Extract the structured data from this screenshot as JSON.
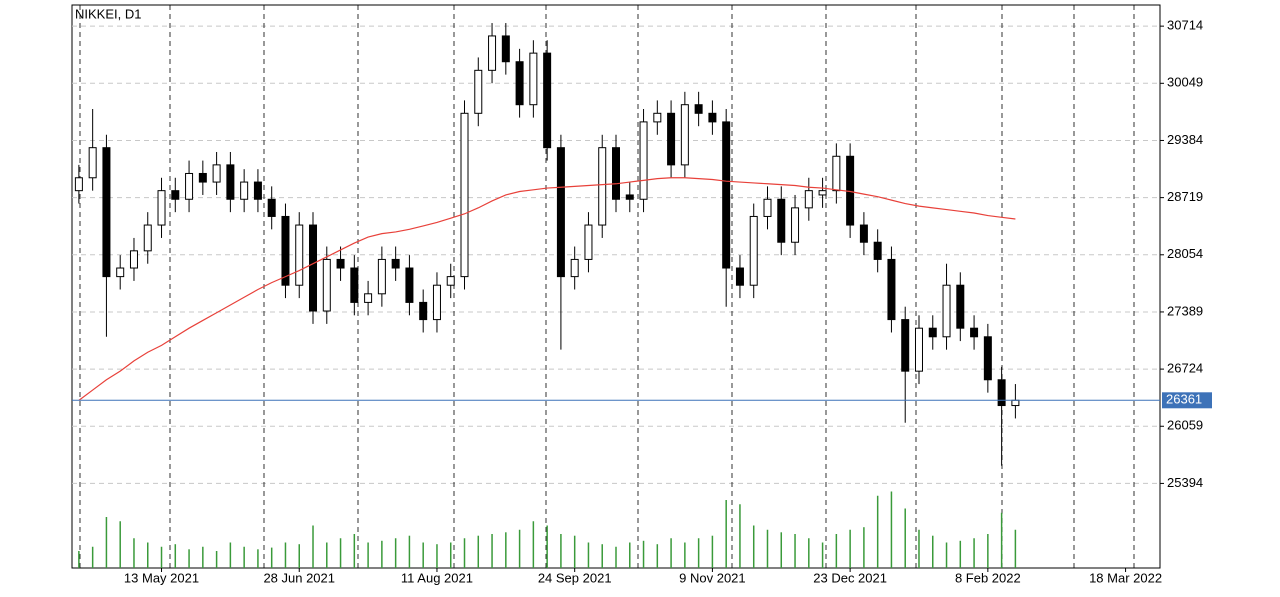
{
  "chart_data": {
    "type": "candlestick",
    "title": "NIKKEI, D1",
    "categories": [
      null,
      null,
      null,
      null,
      null,
      null,
      "13 May 2021",
      null,
      null,
      null,
      null,
      null,
      null,
      null,
      null,
      null,
      "28 Jun 2021",
      null,
      null,
      null,
      null,
      null,
      null,
      null,
      null,
      null,
      "11 Aug 2021",
      null,
      null,
      null,
      null,
      null,
      null,
      null,
      null,
      null,
      "24 Sep 2021",
      null,
      null,
      null,
      null,
      null,
      null,
      null,
      null,
      null,
      "9 Nov 2021",
      null,
      null,
      null,
      null,
      null,
      null,
      null,
      null,
      null,
      "23 Dec 2021",
      null,
      null,
      null,
      null,
      null,
      null,
      null,
      null,
      null,
      "8 Feb 2022",
      null,
      null,
      null,
      null,
      null,
      null,
      null,
      null,
      null,
      "18 Mar 2022",
      null,
      null
    ],
    "open": [
      28800,
      28950,
      29300,
      27800,
      27900,
      28100,
      28400,
      28800,
      28700,
      29000,
      28900,
      29100,
      28700,
      28900,
      28700,
      28500,
      27700,
      28400,
      27400,
      28000,
      27900,
      27500,
      27600,
      28000,
      27900,
      27500,
      27300,
      27700,
      27800,
      29700,
      30200,
      30600,
      30300,
      29800,
      30400,
      29300,
      27800,
      28000,
      28400,
      29300,
      28750,
      28700,
      29600,
      29700,
      29100,
      29800,
      29700,
      29600,
      27900,
      27700,
      28500,
      28700,
      28200,
      28600,
      28750,
      28800,
      29200,
      28400,
      28200,
      28000,
      27300,
      26700,
      27200,
      27100,
      27700,
      27200,
      27100,
      26600,
      26300,
      null,
      null,
      null,
      null,
      null,
      null,
      null,
      null,
      null,
      null
    ],
    "high": [
      29100,
      29750,
      29450,
      28050,
      28250,
      28550,
      28950,
      28950,
      29150,
      29150,
      29250,
      29250,
      29050,
      29050,
      28850,
      28650,
      28550,
      28550,
      28150,
      28150,
      28050,
      27750,
      28150,
      28150,
      28050,
      27650,
      27850,
      27950,
      29850,
      30350,
      30750,
      30750,
      30450,
      30550,
      30550,
      29450,
      28150,
      28550,
      29450,
      29450,
      28900,
      29750,
      29850,
      29850,
      29950,
      29950,
      29850,
      29750,
      28050,
      28650,
      28850,
      28850,
      28750,
      28950,
      28950,
      29350,
      29350,
      28550,
      28350,
      28150,
      27450,
      27350,
      27350,
      27950,
      27850,
      27350,
      27250,
      26750,
      26550,
      null,
      null,
      null,
      null,
      null,
      null,
      null,
      null,
      null,
      null
    ],
    "low": [
      28650,
      28800,
      27100,
      27650,
      27750,
      27950,
      28250,
      28550,
      28550,
      28750,
      28750,
      28550,
      28550,
      28550,
      28350,
      27550,
      27550,
      27250,
      27250,
      27750,
      27350,
      27350,
      27450,
      27750,
      27350,
      27150,
      27150,
      27550,
      27650,
      29550,
      30050,
      30150,
      29650,
      29650,
      29150,
      26950,
      27650,
      27850,
      28250,
      28550,
      28550,
      28550,
      29450,
      28950,
      28950,
      29550,
      29450,
      27450,
      27550,
      27550,
      28350,
      28050,
      28050,
      28450,
      28600,
      28650,
      28250,
      28050,
      27850,
      27150,
      26100,
      26550,
      26950,
      26950,
      27050,
      26950,
      26450,
      25600,
      26150,
      null,
      null,
      null,
      null,
      null,
      null,
      null,
      null,
      null,
      null
    ],
    "close": [
      28950,
      29300,
      27800,
      27900,
      28100,
      28400,
      28800,
      28700,
      29000,
      28900,
      29100,
      28700,
      28900,
      28700,
      28500,
      27700,
      28400,
      27400,
      28000,
      27900,
      27500,
      27600,
      28000,
      27900,
      27500,
      27300,
      27700,
      27800,
      29700,
      30200,
      30600,
      30300,
      29800,
      30400,
      29300,
      27800,
      28000,
      28400,
      29300,
      28700,
      28700,
      29600,
      29700,
      29100,
      29800,
      29700,
      29600,
      27900,
      27700,
      28500,
      28700,
      28200,
      28600,
      28800,
      28800,
      29200,
      28400,
      28200,
      28000,
      27300,
      26700,
      27200,
      27100,
      27700,
      27200,
      27100,
      26600,
      26300,
      26361,
      null,
      null,
      null,
      null,
      null,
      null,
      null,
      null,
      null,
      null
    ],
    "volume": [
      20,
      25,
      60,
      55,
      35,
      30,
      25,
      28,
      22,
      25,
      20,
      30,
      25,
      22,
      24,
      30,
      28,
      50,
      30,
      35,
      40,
      30,
      32,
      35,
      38,
      30,
      28,
      30,
      35,
      38,
      40,
      42,
      45,
      55,
      50,
      40,
      38,
      30,
      28,
      25,
      30,
      32,
      28,
      35,
      30,
      35,
      38,
      80,
      75,
      50,
      45,
      42,
      40,
      35,
      30,
      40,
      45,
      48,
      85,
      90,
      70,
      45,
      38,
      30,
      32,
      35,
      40,
      65,
      45,
      null,
      null,
      null,
      null,
      null,
      null,
      null,
      null,
      null,
      null
    ],
    "volume_lim": [
      0,
      100
    ],
    "ma": [
      26360,
      26480,
      26600,
      26700,
      26820,
      26920,
      27000,
      27100,
      27200,
      27290,
      27380,
      27470,
      27560,
      27650,
      27730,
      27800,
      27870,
      27950,
      28030,
      28110,
      28190,
      28260,
      28300,
      28320,
      28350,
      28390,
      28430,
      28480,
      28530,
      28600,
      28680,
      28750,
      28790,
      28810,
      28830,
      28840,
      28850,
      28860,
      28870,
      28880,
      28900,
      28920,
      28940,
      28950,
      28950,
      28940,
      28930,
      28910,
      28900,
      28890,
      28880,
      28870,
      28860,
      28840,
      28830,
      28810,
      28790,
      28760,
      28730,
      28690,
      28650,
      28620,
      28600,
      28580,
      28560,
      28540,
      28510,
      28490,
      28470,
      null,
      null,
      null,
      null,
      null,
      null,
      null,
      null,
      null,
      null
    ],
    "ma_color": "#e8413a",
    "bull_color": "#ffffff",
    "bear_color": "#000000",
    "volume_color": "#3a9a3a",
    "price_line_color": "#3d72b8",
    "ylim": [
      24410,
      30960
    ],
    "yticks": [
      30714,
      30049,
      29384,
      28719,
      28054,
      27389,
      26724,
      26059,
      25394
    ],
    "grid": true
  }
}
